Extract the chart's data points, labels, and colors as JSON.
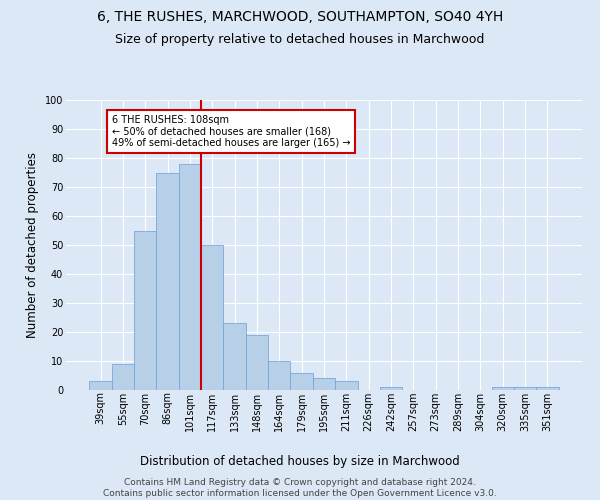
{
  "title": "6, THE RUSHES, MARCHWOOD, SOUTHAMPTON, SO40 4YH",
  "subtitle": "Size of property relative to detached houses in Marchwood",
  "xlabel": "Distribution of detached houses by size in Marchwood",
  "ylabel": "Number of detached properties",
  "categories": [
    "39sqm",
    "55sqm",
    "70sqm",
    "86sqm",
    "101sqm",
    "117sqm",
    "133sqm",
    "148sqm",
    "164sqm",
    "179sqm",
    "195sqm",
    "211sqm",
    "226sqm",
    "242sqm",
    "257sqm",
    "273sqm",
    "289sqm",
    "304sqm",
    "320sqm",
    "335sqm",
    "351sqm"
  ],
  "values": [
    3,
    9,
    55,
    75,
    78,
    50,
    23,
    19,
    10,
    6,
    4,
    3,
    0,
    1,
    0,
    0,
    0,
    0,
    1,
    1,
    1
  ],
  "bar_color": "#b8cfe8",
  "bar_edgecolor": "#6a9fd8",
  "background_color": "#dce8f5",
  "grid_color": "#ffffff",
  "vline_x_index": 5,
  "vline_color": "#cc0000",
  "annotation_text": "6 THE RUSHES: 108sqm\n← 50% of detached houses are smaller (168)\n49% of semi-detached houses are larger (165) →",
  "annotation_box_color": "#ffffff",
  "annotation_box_edgecolor": "#cc0000",
  "footer": "Contains HM Land Registry data © Crown copyright and database right 2024.\nContains public sector information licensed under the Open Government Licence v3.0.",
  "ylim": [
    0,
    100
  ],
  "title_fontsize": 10,
  "subtitle_fontsize": 9,
  "tick_fontsize": 7,
  "ylabel_fontsize": 8.5,
  "xlabel_fontsize": 8.5,
  "footer_fontsize": 6.5
}
